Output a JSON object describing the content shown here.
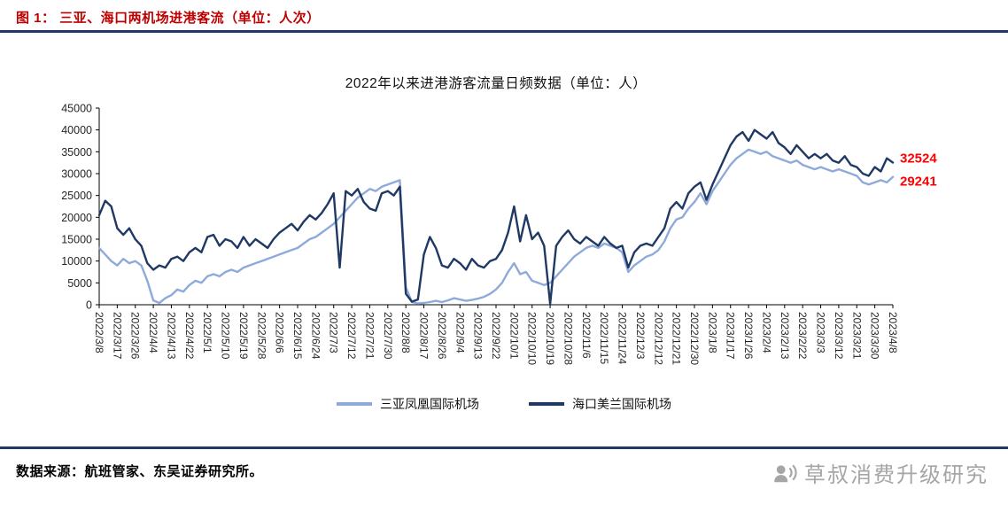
{
  "header": {
    "title": "图 1：  三亚、海口两机场进港客流（单位：人次）"
  },
  "footer": {
    "source": "数据来源：航班管家、东吴证券研究所。",
    "watermark": "草叔消费升级研究"
  },
  "colors": {
    "header_red": "#C00000",
    "rule_navy": "#1F3864",
    "annotation_red": "#FF0000",
    "axis_text": "#262626",
    "watermark_gray": "#A6A6A6"
  },
  "chart_data": {
    "type": "line",
    "title": "2022年以来进港游客流量日频数据（单位：人）",
    "ylim": [
      0,
      45000
    ],
    "yticks": [
      0,
      5000,
      10000,
      15000,
      20000,
      25000,
      30000,
      35000,
      40000,
      45000
    ],
    "grid": false,
    "legend_position": "bottom",
    "points_per_tick": 3,
    "x_tick_labels": [
      "2022/3/8",
      "2022/3/17",
      "2022/3/26",
      "2022/4/4",
      "2022/4/13",
      "2022/4/22",
      "2022/5/1",
      "2022/5/10",
      "2022/5/19",
      "2022/5/28",
      "2022/6/6",
      "2022/6/15",
      "2022/6/24",
      "2022/7/3",
      "2022/7/12",
      "2022/7/21",
      "2022/7/30",
      "2022/8/8",
      "2022/8/17",
      "2022/8/26",
      "2022/9/4",
      "2022/9/13",
      "2022/9/22",
      "2022/10/1",
      "2022/10/10",
      "2022/10/19",
      "2022/10/28",
      "2022/11/6",
      "2022/11/15",
      "2022/11/24",
      "2022/12/3",
      "2022/12/12",
      "2022/12/21",
      "2022/12/30",
      "2023/1/8",
      "2023/1/17",
      "2023/1/26",
      "2023/2/4",
      "2023/2/13",
      "2023/2/22",
      "2023/3/3",
      "2023/3/12",
      "2023/3/21",
      "2023/3/30",
      "2023/4/8"
    ],
    "series": [
      {
        "name": "三亚凤凰国际机场",
        "color": "#8EAADB",
        "values": [
          13000,
          11500,
          10000,
          9000,
          10500,
          9500,
          10000,
          9000,
          5500,
          1000,
          400,
          1500,
          2200,
          3500,
          3000,
          4500,
          5500,
          5000,
          6500,
          7000,
          6500,
          7500,
          8000,
          7500,
          8500,
          9000,
          9500,
          10000,
          10500,
          11000,
          11500,
          12000,
          12500,
          13000,
          14000,
          15000,
          15500,
          16500,
          17500,
          18500,
          20000,
          21500,
          23000,
          24500,
          25500,
          26500,
          26000,
          27000,
          27500,
          28000,
          28500,
          4000,
          600,
          300,
          400,
          600,
          900,
          600,
          1000,
          1500,
          1200,
          900,
          1100,
          1400,
          1800,
          2500,
          3500,
          5000,
          7500,
          9500,
          7000,
          7500,
          5500,
          5000,
          4500,
          5000,
          6500,
          8000,
          9500,
          11000,
          12000,
          13000,
          13500,
          13000,
          14000,
          13500,
          13000,
          12000,
          7500,
          9000,
          10000,
          11000,
          11500,
          12500,
          14500,
          17500,
          19500,
          20000,
          22000,
          23500,
          25500,
          23000,
          26000,
          28000,
          30000,
          32000,
          33500,
          34500,
          35500,
          35000,
          34500,
          35000,
          34000,
          33500,
          33000,
          32500,
          33000,
          32000,
          31500,
          31000,
          31500,
          31000,
          30500,
          31000,
          30500,
          30000,
          29500,
          28000,
          27500,
          28000,
          28500,
          28000,
          29241
        ]
      },
      {
        "name": "海口美兰国际机场",
        "color": "#1F3864",
        "values": [
          20500,
          23800,
          22500,
          17500,
          16000,
          17500,
          15000,
          13500,
          9500,
          8000,
          9000,
          8500,
          10500,
          11000,
          10000,
          12000,
          13000,
          12000,
          15500,
          16000,
          13500,
          15000,
          14500,
          13000,
          15500,
          13500,
          15000,
          14000,
          13000,
          15000,
          16500,
          17500,
          18500,
          17000,
          19000,
          20500,
          19500,
          21000,
          23000,
          25500,
          8500,
          26000,
          25000,
          26500,
          23500,
          22000,
          21500,
          25500,
          26000,
          25000,
          27000,
          2500,
          700,
          1200,
          11500,
          15500,
          13000,
          9000,
          8500,
          10500,
          9500,
          8000,
          10500,
          9000,
          8500,
          10000,
          10500,
          12500,
          16500,
          22500,
          14500,
          20500,
          15000,
          16500,
          13500,
          200,
          13500,
          15500,
          17000,
          15000,
          14000,
          15500,
          14500,
          13500,
          15500,
          14000,
          13000,
          13500,
          8500,
          12000,
          13500,
          14000,
          13500,
          15500,
          17500,
          22000,
          23500,
          22000,
          25500,
          27000,
          28000,
          24000,
          27500,
          30500,
          33500,
          36500,
          38500,
          39500,
          37500,
          40000,
          39000,
          38000,
          39500,
          37000,
          36000,
          34500,
          36500,
          35000,
          33500,
          34500,
          33500,
          34500,
          33000,
          32500,
          34000,
          32000,
          31500,
          30000,
          29500,
          31500,
          30500,
          33500,
          32524
        ]
      }
    ],
    "annotations": [
      {
        "text": "32524",
        "series": "海口美兰国际机场",
        "color": "#FF0000"
      },
      {
        "text": "29241",
        "series": "三亚凤凰国际机场",
        "color": "#FF0000"
      }
    ]
  }
}
